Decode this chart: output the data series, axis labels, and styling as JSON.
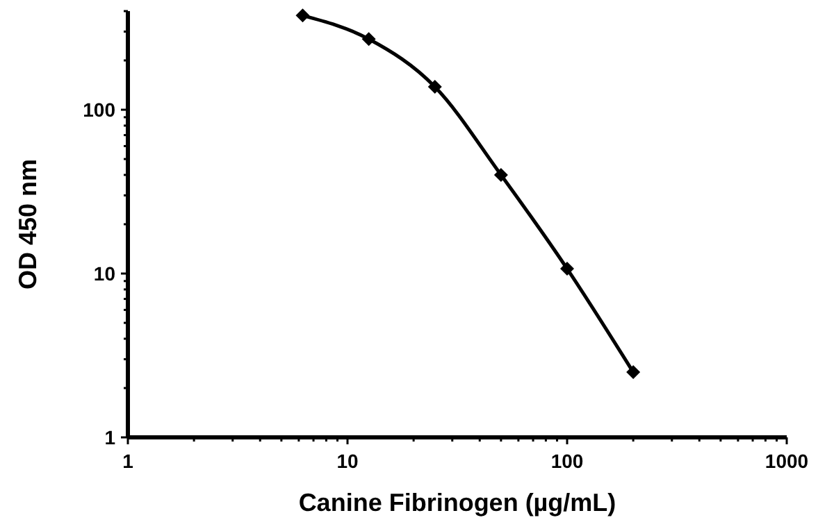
{
  "chart_data": {
    "type": "line",
    "xlabel": "Canine Fibrinogen (µg/mL)",
    "ylabel": "OD 450 nm",
    "x": [
      6.25,
      12.5,
      25,
      50,
      100,
      200
    ],
    "series": [
      {
        "color": "#000000",
        "values": [
          376,
          270,
          138,
          40,
          10.7,
          2.5
        ]
      }
    ],
    "log": "xy",
    "xlim": [
      1,
      1000
    ],
    "ylim": [
      1,
      400
    ],
    "xticks": [
      1,
      {
        "value": 2,
        "label": null
      },
      {
        "value": 3,
        "label": null
      },
      {
        "value": 4,
        "label": null
      },
      {
        "value": 5,
        "label": null
      },
      {
        "value": 6,
        "label": null
      },
      {
        "value": 7,
        "label": null
      },
      {
        "value": 8,
        "label": null
      },
      {
        "value": 9,
        "label": null
      },
      10,
      {
        "value": 20,
        "label": null
      },
      {
        "value": 30,
        "label": null
      },
      {
        "value": 40,
        "label": null
      },
      {
        "value": 50,
        "label": null
      },
      {
        "value": 60,
        "label": null
      },
      {
        "value": 70,
        "label": null
      },
      {
        "value": 80,
        "label": null
      },
      {
        "value": 90,
        "label": null
      },
      100,
      {
        "value": 200,
        "label": null
      },
      {
        "value": 300,
        "label": null
      },
      {
        "value": 400,
        "label": null
      },
      {
        "value": 500,
        "label": null
      },
      {
        "value": 600,
        "label": null
      },
      {
        "value": 700,
        "label": null
      },
      {
        "value": 800,
        "label": null
      },
      {
        "value": 900,
        "label": null
      },
      1000
    ],
    "yticks": [
      1,
      {
        "value": 2,
        "label": null
      },
      {
        "value": 3,
        "label": null
      },
      {
        "value": 4,
        "label": null
      },
      {
        "value": 5,
        "label": null
      },
      {
        "value": 6,
        "label": null
      },
      {
        "value": 7,
        "label": null
      },
      {
        "value": 8,
        "label": null
      },
      {
        "value": 9,
        "label": null
      },
      10,
      {
        "value": 20,
        "label": null
      },
      {
        "value": 30,
        "label": null
      },
      {
        "value": 40,
        "label": null
      },
      {
        "value": 50,
        "label": null
      },
      {
        "value": 60,
        "label": null
      },
      {
        "value": 70,
        "label": null
      },
      {
        "value": 80,
        "label": null
      },
      {
        "value": 90,
        "label": null
      },
      100,
      {
        "value": 200,
        "label": null
      },
      {
        "value": 300,
        "label": null
      },
      {
        "value": 400,
        "label": null
      }
    ],
    "marker": "diamond",
    "line_style": "solid"
  }
}
